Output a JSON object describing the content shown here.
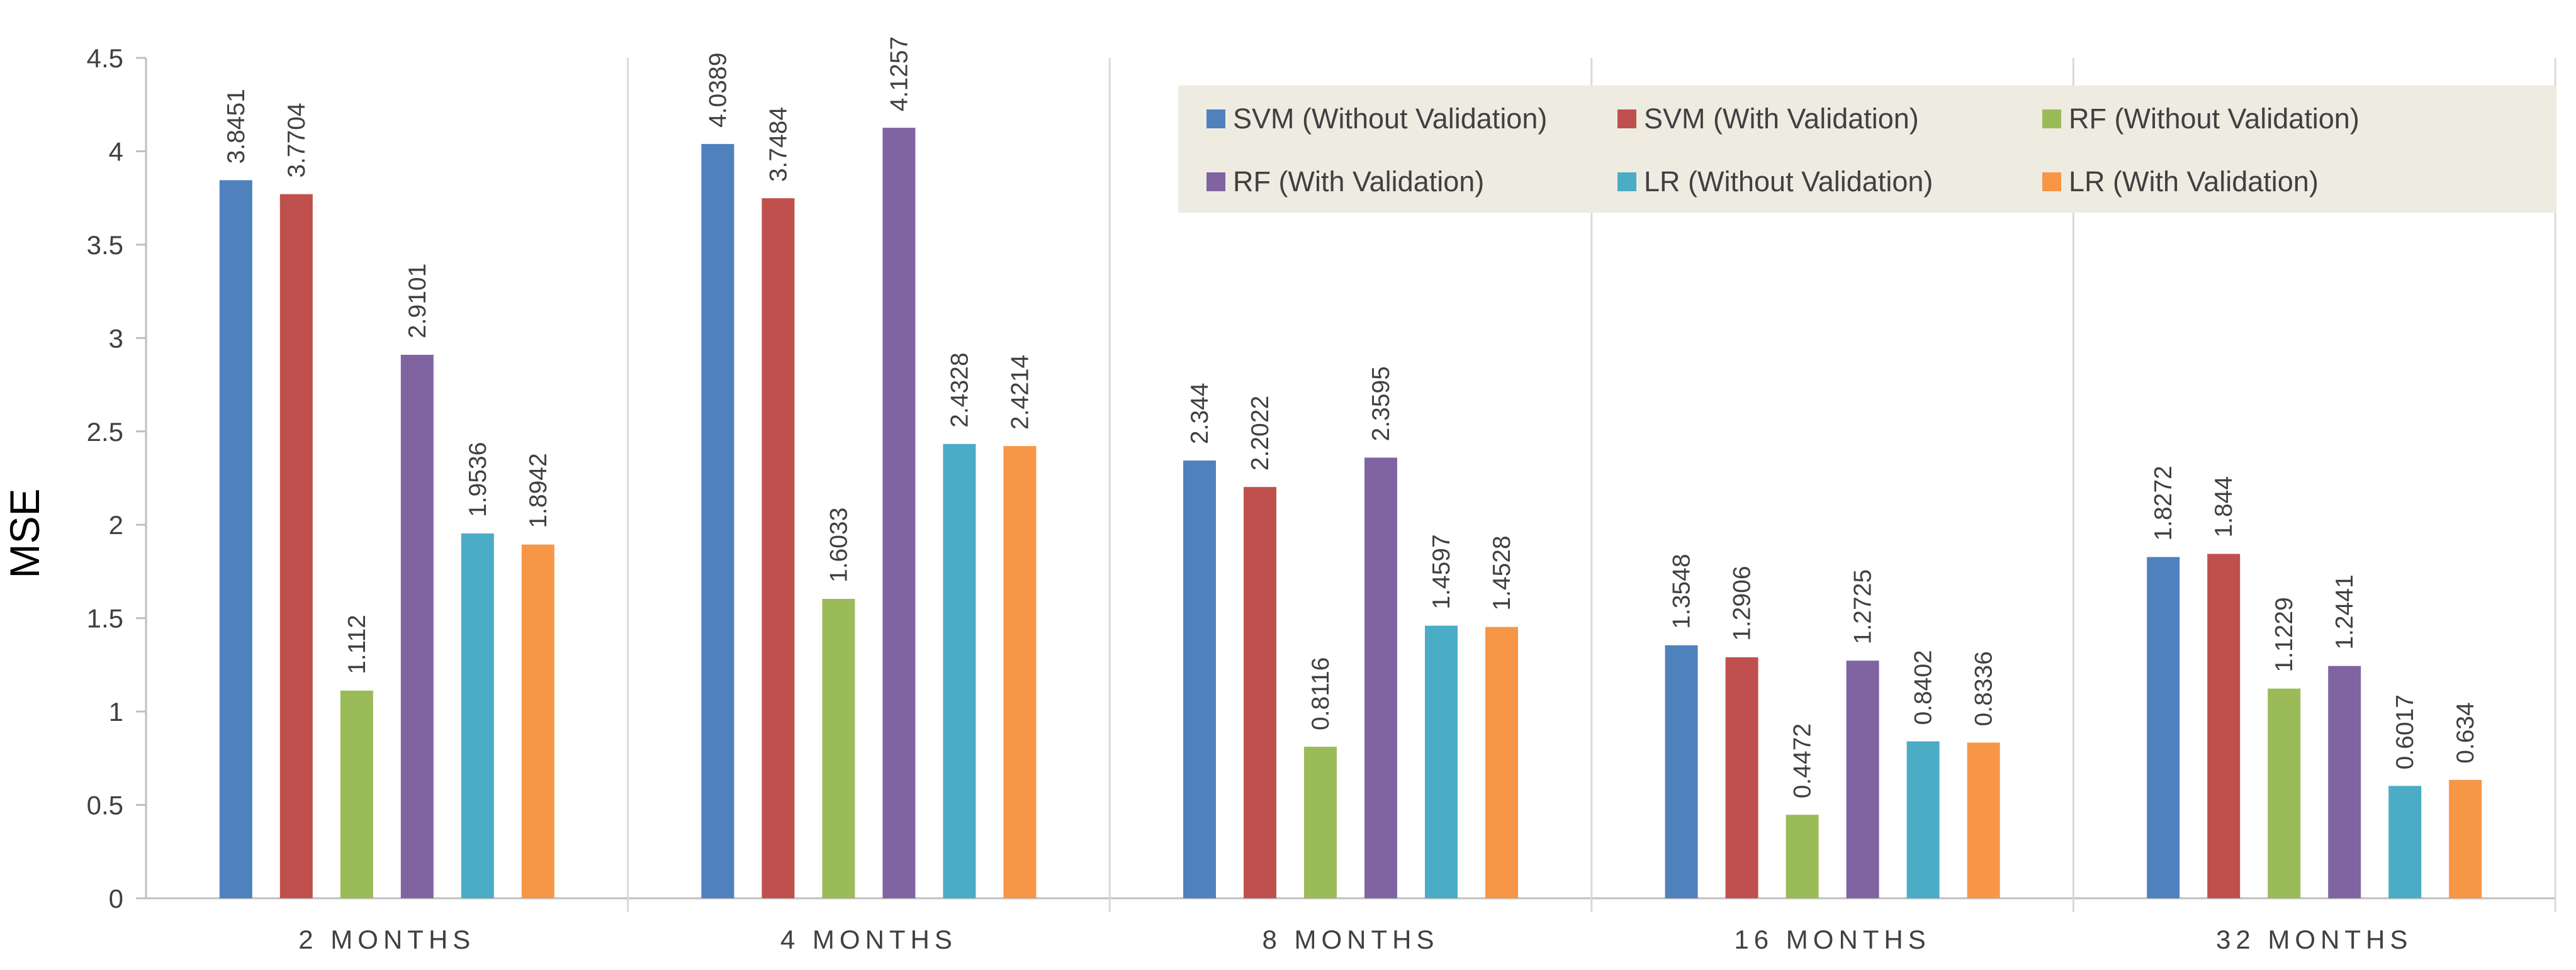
{
  "chart_data": {
    "type": "bar",
    "title": "",
    "xlabel": "",
    "ylabel": "MSE",
    "ylim": [
      0,
      4.5
    ],
    "yticks": [
      "0",
      "0.5",
      "1",
      "1.5",
      "2",
      "2.5",
      "3",
      "3.5",
      "4",
      "4.5"
    ],
    "categories": [
      "2 MONTHS",
      "4 MONTHS",
      "8 MONTHS",
      "16 MONTHS",
      "32 MONTHS"
    ],
    "legend_position": "top-right",
    "grid": "vertical separators between categories",
    "series": [
      {
        "name": "SVM (Without Validation)",
        "color": "#4F81BD",
        "values": [
          3.8451,
          4.0389,
          2.344,
          1.3548,
          1.8272
        ],
        "labels": [
          "3.8451",
          "4.0389",
          "2.344",
          "1.3548",
          "1.8272"
        ]
      },
      {
        "name": "SVM (With Validation)",
        "color": "#C0504D",
        "values": [
          3.7704,
          3.7484,
          2.2022,
          1.2906,
          1.844
        ],
        "labels": [
          "3.7704",
          "3.7484",
          "2.2022",
          "1.2906",
          "1.844"
        ]
      },
      {
        "name": "RF (Without Validation)",
        "color": "#9BBB59",
        "values": [
          1.112,
          1.6033,
          0.8116,
          0.4472,
          1.1229
        ],
        "labels": [
          "1.112",
          "1.6033",
          "0.8116",
          "0.4472",
          "1.1229"
        ]
      },
      {
        "name": "RF (With Validation)",
        "color": "#8064A2",
        "values": [
          2.9101,
          4.1257,
          2.3595,
          1.2725,
          1.2441
        ],
        "labels": [
          "2.9101",
          "4.1257",
          "2.3595",
          "1.2725",
          "1.2441"
        ]
      },
      {
        "name": "LR (Without Validation)",
        "color": "#4BACC6",
        "values": [
          1.9536,
          2.4328,
          1.4597,
          0.8402,
          0.6017
        ],
        "labels": [
          "1.9536",
          "2.4328",
          "1.4597",
          "0.8402",
          "0.6017"
        ]
      },
      {
        "name": "LR (With Validation)",
        "color": "#F79646",
        "values": [
          1.8942,
          2.4214,
          1.4528,
          0.8336,
          0.634
        ],
        "labels": [
          "1.8942",
          "2.4214",
          "1.4528",
          "0.8336",
          "0.634"
        ]
      }
    ]
  }
}
